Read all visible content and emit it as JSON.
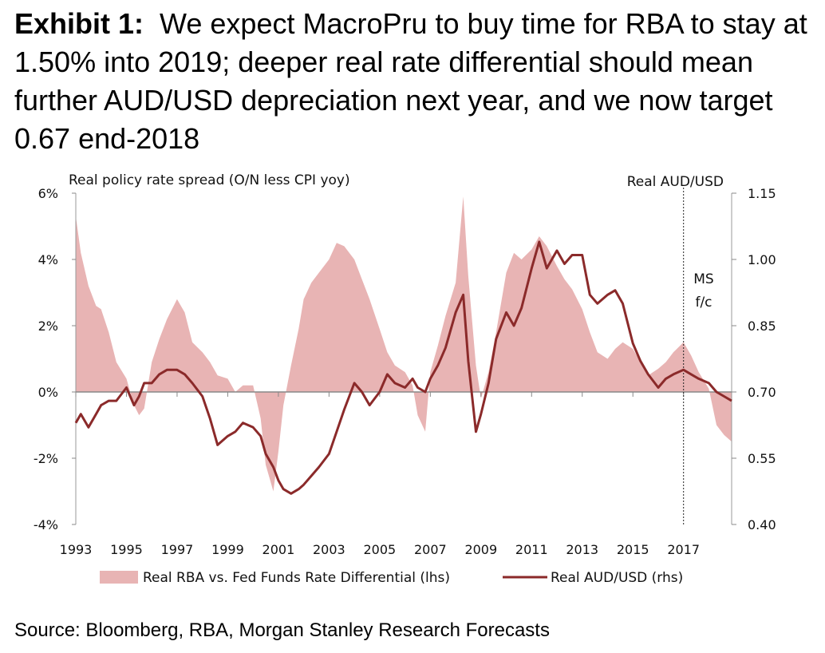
{
  "title": {
    "lead": "Exhibit 1:",
    "text": "We expect MacroPru to buy time for RBA to stay at 1.50% into 2019; deeper real rate differential should mean further AUD/USD depreciation next year, and we now target 0.67 end-2018"
  },
  "source": "Source: Bloomberg, RBA, Morgan Stanley Research Forecasts",
  "chart_data": {
    "type": "area+line",
    "left_axis_title": "Real policy rate spread (O/N less CPI yoy)",
    "right_axis_title": "Real AUD/USD",
    "forecast_marker": {
      "x": 2017.0,
      "label_line1": "MS",
      "label_line2": "f/c"
    },
    "left_axis": {
      "min": -4,
      "max": 6,
      "ticks": [
        -4,
        -2,
        0,
        2,
        4,
        6
      ],
      "tick_labels": [
        "-4%",
        "-2%",
        "0%",
        "2%",
        "4%",
        "6%"
      ]
    },
    "right_axis": {
      "min": 0.4,
      "max": 1.15,
      "ticks": [
        0.4,
        0.55,
        0.7,
        0.85,
        1.0,
        1.15
      ],
      "tick_labels": [
        "0.40",
        "0.55",
        "0.70",
        "0.85",
        "1.00",
        "1.15"
      ]
    },
    "x_axis": {
      "min": 1993,
      "max": 2018.9,
      "ticks": [
        1993,
        1995,
        1997,
        1999,
        2001,
        2003,
        2005,
        2007,
        2009,
        2011,
        2013,
        2015,
        2017
      ],
      "tick_labels": [
        "1993",
        "1995",
        "1997",
        "1999",
        "2001",
        "2003",
        "2005",
        "2007",
        "2009",
        "2011",
        "2013",
        "2015",
        "2017"
      ]
    },
    "series": [
      {
        "name": "Real RBA vs. Fed Funds Rate Differential (lhs)",
        "type": "area",
        "color": "#e8b4b4",
        "x": [
          1993.0,
          1993.2,
          1993.5,
          1993.8,
          1994.0,
          1994.3,
          1994.6,
          1995.0,
          1995.3,
          1995.5,
          1995.7,
          1996.0,
          1996.3,
          1996.6,
          1997.0,
          1997.3,
          1997.6,
          1998.0,
          1998.3,
          1998.6,
          1999.0,
          1999.3,
          1999.6,
          2000.0,
          2000.3,
          2000.5,
          2000.8,
          2001.0,
          2001.2,
          2001.5,
          2001.8,
          2002.0,
          2002.3,
          2002.6,
          2003.0,
          2003.3,
          2003.6,
          2004.0,
          2004.3,
          2004.6,
          2005.0,
          2005.3,
          2005.6,
          2006.0,
          2006.3,
          2006.5,
          2006.8,
          2007.0,
          2007.3,
          2007.6,
          2008.0,
          2008.3,
          2008.5,
          2008.8,
          2009.0,
          2009.3,
          2009.6,
          2010.0,
          2010.3,
          2010.6,
          2011.0,
          2011.3,
          2011.6,
          2012.0,
          2012.3,
          2012.6,
          2013.0,
          2013.3,
          2013.6,
          2014.0,
          2014.3,
          2014.6,
          2015.0,
          2015.3,
          2015.6,
          2016.0,
          2016.3,
          2016.6,
          2017.0,
          2017.3,
          2017.6,
          2018.0,
          2018.3,
          2018.6,
          2018.9
        ],
        "values": [
          5.3,
          4.2,
          3.2,
          2.6,
          2.5,
          1.8,
          0.9,
          0.4,
          -0.4,
          -0.7,
          -0.5,
          0.9,
          1.6,
          2.2,
          2.8,
          2.4,
          1.5,
          1.2,
          0.9,
          0.5,
          0.4,
          0.0,
          0.2,
          0.2,
          -0.8,
          -2.2,
          -3.0,
          -1.8,
          -0.4,
          0.8,
          1.9,
          2.8,
          3.3,
          3.6,
          4.0,
          4.5,
          4.4,
          4.0,
          3.4,
          2.8,
          1.9,
          1.2,
          0.8,
          0.6,
          0.2,
          -0.7,
          -1.2,
          0.6,
          1.4,
          2.3,
          3.3,
          5.9,
          3.5,
          0.8,
          -0.2,
          0.6,
          1.8,
          3.6,
          4.2,
          4.0,
          4.3,
          4.7,
          4.4,
          3.8,
          3.4,
          3.1,
          2.5,
          1.8,
          1.2,
          1.0,
          1.3,
          1.5,
          1.3,
          0.9,
          0.5,
          0.7,
          0.9,
          1.2,
          1.5,
          1.1,
          0.6,
          0.1,
          -1.0,
          -1.3,
          -1.5
        ]
      },
      {
        "name": "Real AUD/USD (rhs)",
        "type": "line",
        "color": "#8b2a2a",
        "x": [
          1993.0,
          1993.2,
          1993.5,
          1993.8,
          1994.0,
          1994.3,
          1994.6,
          1995.0,
          1995.3,
          1995.5,
          1995.7,
          1996.0,
          1996.3,
          1996.6,
          1997.0,
          1997.3,
          1997.6,
          1998.0,
          1998.3,
          1998.6,
          1999.0,
          1999.3,
          1999.6,
          2000.0,
          2000.3,
          2000.5,
          2000.8,
          2001.0,
          2001.2,
          2001.5,
          2001.8,
          2002.0,
          2002.3,
          2002.6,
          2003.0,
          2003.3,
          2003.6,
          2004.0,
          2004.3,
          2004.6,
          2005.0,
          2005.3,
          2005.6,
          2006.0,
          2006.3,
          2006.5,
          2006.8,
          2007.0,
          2007.3,
          2007.6,
          2008.0,
          2008.3,
          2008.5,
          2008.8,
          2009.0,
          2009.3,
          2009.6,
          2010.0,
          2010.3,
          2010.6,
          2011.0,
          2011.3,
          2011.6,
          2012.0,
          2012.3,
          2012.6,
          2013.0,
          2013.3,
          2013.6,
          2014.0,
          2014.3,
          2014.6,
          2015.0,
          2015.3,
          2015.6,
          2016.0,
          2016.3,
          2016.6,
          2017.0,
          2017.3,
          2017.6,
          2018.0,
          2018.3,
          2018.6,
          2018.9
        ],
        "values": [
          0.63,
          0.65,
          0.62,
          0.65,
          0.67,
          0.68,
          0.68,
          0.71,
          0.67,
          0.69,
          0.72,
          0.72,
          0.74,
          0.75,
          0.75,
          0.74,
          0.72,
          0.69,
          0.64,
          0.58,
          0.6,
          0.61,
          0.63,
          0.62,
          0.6,
          0.56,
          0.53,
          0.5,
          0.48,
          0.47,
          0.48,
          0.49,
          0.51,
          0.53,
          0.56,
          0.61,
          0.66,
          0.72,
          0.7,
          0.67,
          0.7,
          0.74,
          0.72,
          0.71,
          0.73,
          0.71,
          0.7,
          0.73,
          0.76,
          0.8,
          0.88,
          0.92,
          0.77,
          0.61,
          0.65,
          0.72,
          0.82,
          0.88,
          0.85,
          0.89,
          0.98,
          1.04,
          0.98,
          1.02,
          0.99,
          1.01,
          1.01,
          0.92,
          0.9,
          0.92,
          0.93,
          0.9,
          0.81,
          0.77,
          0.74,
          0.71,
          0.73,
          0.74,
          0.75,
          0.74,
          0.73,
          0.72,
          0.7,
          0.69,
          0.68
        ]
      }
    ]
  }
}
